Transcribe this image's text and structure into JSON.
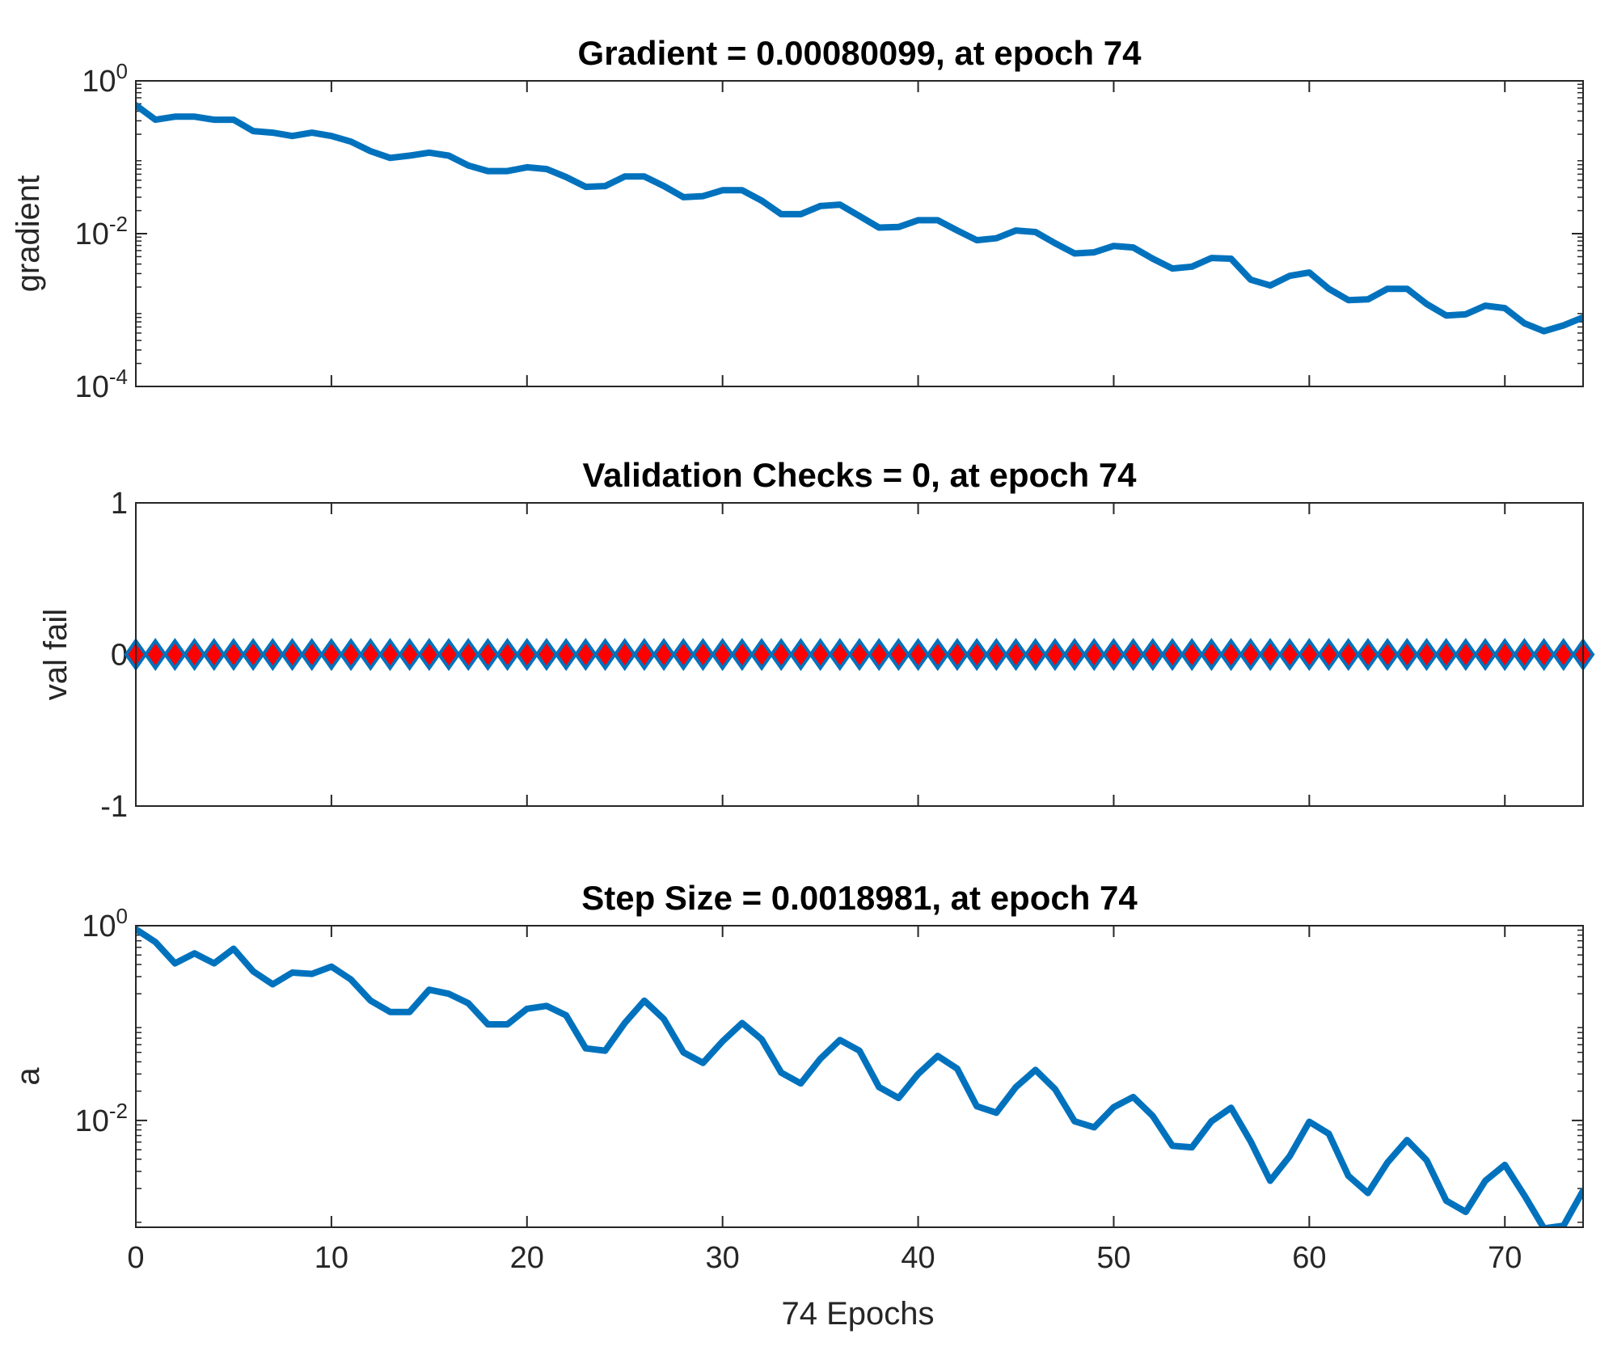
{
  "colors": {
    "line": "#0072bd",
    "marker_fill": "#ff0000",
    "marker_edge": "#0072bd",
    "axes": "#262626"
  },
  "xlabel": "74 Epochs",
  "x_range": [
    0,
    74
  ],
  "x_ticks": [
    "0",
    "10",
    "20",
    "30",
    "40",
    "50",
    "60",
    "70"
  ],
  "x_tick_values": [
    0,
    10,
    20,
    30,
    40,
    50,
    60,
    70
  ],
  "chart_data": [
    {
      "type": "line",
      "title": "Gradient = 0.00080099, at epoch 74",
      "ylabel": "gradient",
      "yscale": "log",
      "ylim": [
        0.0001,
        1
      ],
      "y_ticks": [
        {
          "value": 1,
          "base": "10",
          "exp": "0"
        },
        {
          "value": 0.01,
          "base": "10",
          "exp": "-2"
        },
        {
          "value": 0.0001,
          "base": "10",
          "exp": "-4"
        }
      ],
      "x": [
        0,
        1,
        2,
        3,
        4,
        5,
        6,
        7,
        8,
        9,
        10,
        11,
        12,
        13,
        14,
        15,
        16,
        17,
        18,
        19,
        20,
        21,
        22,
        23,
        24,
        25,
        26,
        27,
        28,
        29,
        30,
        31,
        32,
        33,
        34,
        35,
        36,
        37,
        38,
        39,
        40,
        41,
        42,
        43,
        44,
        45,
        46,
        47,
        48,
        49,
        50,
        51,
        52,
        53,
        54,
        55,
        56,
        57,
        58,
        59,
        60,
        61,
        62,
        63,
        64,
        65,
        66,
        67,
        68,
        69,
        70,
        71,
        72,
        73,
        74
      ],
      "values": [
        0.48,
        0.31,
        0.34,
        0.34,
        0.31,
        0.31,
        0.22,
        0.21,
        0.19,
        0.21,
        0.19,
        0.16,
        0.12,
        0.098,
        0.105,
        0.115,
        0.105,
        0.078,
        0.066,
        0.066,
        0.074,
        0.07,
        0.055,
        0.041,
        0.042,
        0.056,
        0.056,
        0.042,
        0.03,
        0.031,
        0.037,
        0.037,
        0.027,
        0.018,
        0.018,
        0.023,
        0.024,
        0.017,
        0.012,
        0.0122,
        0.015,
        0.015,
        0.011,
        0.0082,
        0.0087,
        0.011,
        0.0105,
        0.0075,
        0.0055,
        0.0057,
        0.0069,
        0.0066,
        0.0047,
        0.0035,
        0.0037,
        0.0048,
        0.0047,
        0.0025,
        0.0021,
        0.0028,
        0.0031,
        0.0019,
        0.00135,
        0.00138,
        0.0019,
        0.0019,
        0.0012,
        0.00085,
        0.00088,
        0.00114,
        0.00106,
        0.00067,
        0.00053,
        0.00063,
        0.00080099
      ]
    },
    {
      "type": "scatter",
      "title": "Validation Checks = 0, at epoch 74",
      "ylabel": "val fail",
      "yscale": "linear",
      "ylim": [
        -1,
        1
      ],
      "y_ticks": [
        {
          "value": 1,
          "label": "1"
        },
        {
          "value": 0,
          "label": "0"
        },
        {
          "value": -1,
          "label": "-1"
        }
      ],
      "x": [
        0,
        1,
        2,
        3,
        4,
        5,
        6,
        7,
        8,
        9,
        10,
        11,
        12,
        13,
        14,
        15,
        16,
        17,
        18,
        19,
        20,
        21,
        22,
        23,
        24,
        25,
        26,
        27,
        28,
        29,
        30,
        31,
        32,
        33,
        34,
        35,
        36,
        37,
        38,
        39,
        40,
        41,
        42,
        43,
        44,
        45,
        46,
        47,
        48,
        49,
        50,
        51,
        52,
        53,
        54,
        55,
        56,
        57,
        58,
        59,
        60,
        61,
        62,
        63,
        64,
        65,
        66,
        67,
        68,
        69,
        70,
        71,
        72,
        73,
        74
      ],
      "values": [
        0,
        0,
        0,
        0,
        0,
        0,
        0,
        0,
        0,
        0,
        0,
        0,
        0,
        0,
        0,
        0,
        0,
        0,
        0,
        0,
        0,
        0,
        0,
        0,
        0,
        0,
        0,
        0,
        0,
        0,
        0,
        0,
        0,
        0,
        0,
        0,
        0,
        0,
        0,
        0,
        0,
        0,
        0,
        0,
        0,
        0,
        0,
        0,
        0,
        0,
        0,
        0,
        0,
        0,
        0,
        0,
        0,
        0,
        0,
        0,
        0,
        0,
        0,
        0,
        0,
        0,
        0,
        0,
        0,
        0,
        0,
        0,
        0,
        0,
        0
      ]
    },
    {
      "type": "line",
      "title": "Step Size = 0.0018981, at epoch 74",
      "ylabel": "a",
      "yscale": "log",
      "ylim": [
        0.0008,
        1
      ],
      "y_ticks": [
        {
          "value": 1,
          "base": "10",
          "exp": "0"
        },
        {
          "value": 0.01,
          "base": "10",
          "exp": "-2"
        }
      ],
      "x": [
        0,
        1,
        2,
        3,
        4,
        5,
        6,
        7,
        8,
        9,
        10,
        11,
        12,
        13,
        14,
        15,
        16,
        17,
        18,
        19,
        20,
        21,
        22,
        23,
        24,
        25,
        26,
        27,
        28,
        29,
        30,
        31,
        32,
        33,
        34,
        35,
        36,
        37,
        38,
        39,
        40,
        41,
        42,
        43,
        44,
        45,
        46,
        47,
        48,
        49,
        50,
        51,
        52,
        53,
        54,
        55,
        56,
        57,
        58,
        59,
        60,
        61,
        62,
        63,
        64,
        65,
        66,
        67,
        68,
        69,
        70,
        71,
        72,
        73,
        74
      ],
      "values": [
        0.92,
        0.68,
        0.41,
        0.52,
        0.41,
        0.58,
        0.34,
        0.25,
        0.33,
        0.32,
        0.38,
        0.28,
        0.17,
        0.13,
        0.13,
        0.22,
        0.2,
        0.16,
        0.097,
        0.097,
        0.14,
        0.15,
        0.12,
        0.055,
        0.052,
        0.1,
        0.17,
        0.11,
        0.05,
        0.039,
        0.065,
        0.1,
        0.068,
        0.031,
        0.024,
        0.043,
        0.067,
        0.052,
        0.022,
        0.017,
        0.03,
        0.046,
        0.034,
        0.014,
        0.012,
        0.022,
        0.033,
        0.021,
        0.0098,
        0.0085,
        0.0137,
        0.0174,
        0.0111,
        0.0055,
        0.0053,
        0.0098,
        0.0135,
        0.0061,
        0.0024,
        0.0043,
        0.0097,
        0.0073,
        0.0027,
        0.0018,
        0.0037,
        0.0063,
        0.0039,
        0.0015,
        0.00115,
        0.0024,
        0.0035,
        0.0017,
        0.00078,
        0.00083,
        0.0018981
      ]
    }
  ]
}
